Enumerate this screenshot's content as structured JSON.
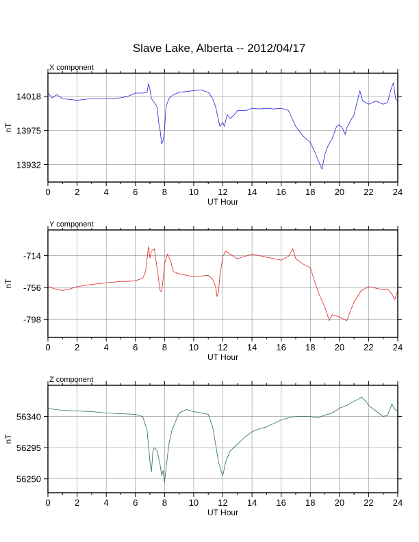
{
  "page": {
    "title": "Slave Lake, Alberta -- 2012/04/17"
  },
  "chart_data": [
    {
      "type": "line",
      "title": "X component",
      "xlabel": "UT Hour",
      "ylabel": "nT",
      "xlim": [
        0,
        24
      ],
      "ylim": [
        13910,
        14047
      ],
      "x_ticks": [
        0,
        2,
        4,
        6,
        8,
        10,
        12,
        14,
        16,
        18,
        20,
        22,
        24
      ],
      "y_ticks": [
        13932,
        13975,
        14018
      ],
      "grid": true,
      "series": [
        {
          "color": "#2020dd",
          "x": [
            0,
            0.3,
            0.6,
            1,
            1.5,
            2,
            3,
            4,
            5,
            5.5,
            6,
            6.5,
            6.8,
            6.9,
            7.0,
            7.1,
            7.3,
            7.5,
            7.6,
            7.7,
            7.8,
            7.9,
            8.0,
            8.1,
            8.3,
            8.6,
            9,
            9.5,
            10,
            10.5,
            11,
            11.3,
            11.5,
            11.7,
            11.8,
            12.0,
            12.1,
            12.3,
            12.5,
            12.8,
            13,
            13.3,
            13.6,
            14,
            14.5,
            15,
            15.5,
            16,
            16.5,
            17,
            17.5,
            18,
            18.3,
            18.6,
            18.8,
            19.0,
            19.2,
            19.5,
            19.8,
            20,
            20.2,
            20.4,
            20.5,
            20.7,
            21,
            21.2,
            21.4,
            21.6,
            21.8,
            22,
            22.5,
            23,
            23.3,
            23.5,
            23.7,
            23.85,
            24
          ],
          "y": [
            14022,
            14016,
            14020,
            14015,
            14014,
            14013,
            14015,
            14015,
            14016,
            14018,
            14022,
            14022,
            14023,
            14034,
            14027,
            14015,
            14010,
            14004,
            13985,
            13975,
            13958,
            13962,
            13975,
            14005,
            14015,
            14020,
            14023,
            14024,
            14025,
            14026,
            14023,
            14015,
            14005,
            13988,
            13980,
            13985,
            13980,
            13995,
            13990,
            13995,
            14000,
            14000,
            14000,
            14003,
            14002,
            14003,
            14002,
            14003,
            14000,
            13980,
            13968,
            13960,
            13948,
            13935,
            13926,
            13945,
            13955,
            13965,
            13980,
            13982,
            13978,
            13970,
            13978,
            13985,
            13995,
            14010,
            14025,
            14012,
            14010,
            14008,
            14012,
            14008,
            14010,
            14025,
            14035,
            14015,
            14012
          ]
        }
      ]
    },
    {
      "type": "line",
      "title": "Y component",
      "xlabel": "UT Hour",
      "ylabel": "nT",
      "xlim": [
        0,
        24
      ],
      "ylim": [
        -822,
        -680
      ],
      "x_ticks": [
        0,
        2,
        4,
        6,
        8,
        10,
        12,
        14,
        16,
        18,
        20,
        22,
        24
      ],
      "y_ticks": [
        -714,
        -756,
        -798
      ],
      "grid": true,
      "series": [
        {
          "color": "#e02020",
          "x": [
            0,
            0.5,
            1,
            1.5,
            2,
            3,
            4,
            5,
            5.5,
            6,
            6.5,
            6.7,
            6.9,
            7.0,
            7.1,
            7.3,
            7.5,
            7.7,
            7.8,
            7.9,
            8.0,
            8.2,
            8.4,
            8.6,
            9,
            9.5,
            10,
            10.5,
            11,
            11.3,
            11.5,
            11.6,
            11.7,
            11.8,
            12.0,
            12.2,
            12.5,
            13,
            13.5,
            14,
            14.5,
            15,
            15.5,
            16,
            16.5,
            16.8,
            17,
            17.5,
            18,
            18.3,
            18.6,
            19.0,
            19.3,
            19.5,
            20,
            20.5,
            20.7,
            21,
            21.5,
            22,
            22.5,
            23,
            23.3,
            23.6,
            23.8,
            24
          ],
          "y": [
            -755,
            -758,
            -760,
            -758,
            -755,
            -752,
            -750,
            -748,
            -748,
            -747,
            -744,
            -735,
            -702,
            -717,
            -708,
            -705,
            -732,
            -760,
            -762,
            -745,
            -725,
            -712,
            -720,
            -735,
            -738,
            -740,
            -742,
            -741,
            -740,
            -745,
            -755,
            -768,
            -762,
            -740,
            -715,
            -708,
            -712,
            -718,
            -715,
            -712,
            -714,
            -716,
            -718,
            -720,
            -715,
            -705,
            -718,
            -725,
            -730,
            -748,
            -765,
            -782,
            -800,
            -792,
            -795,
            -800,
            -790,
            -775,
            -760,
            -755,
            -757,
            -759,
            -758,
            -765,
            -772,
            -760
          ]
        }
      ]
    },
    {
      "type": "line",
      "title": "Z component",
      "xlabel": "UT Hour",
      "ylabel": "nT",
      "xlim": [
        0,
        24
      ],
      "ylim": [
        56230,
        56385
      ],
      "x_ticks": [
        0,
        2,
        4,
        6,
        8,
        10,
        12,
        14,
        16,
        18,
        20,
        22,
        24
      ],
      "y_ticks": [
        56250,
        56295,
        56340
      ],
      "grid": true,
      "series": [
        {
          "color": "#207040",
          "x": [
            0,
            0.5,
            1,
            2,
            3,
            4,
            5,
            6,
            6.5,
            6.8,
            7.0,
            7.1,
            7.2,
            7.3,
            7.5,
            7.7,
            7.8,
            7.9,
            8.0,
            8.1,
            8.3,
            8.5,
            8.8,
            9,
            9.5,
            10,
            10.5,
            11,
            11.3,
            11.5,
            11.7,
            11.9,
            12.0,
            12.2,
            12.5,
            13,
            13.5,
            14,
            14.5,
            15,
            15.5,
            16,
            16.5,
            17,
            17.5,
            18,
            18.5,
            19,
            19.5,
            20,
            20.5,
            21,
            21.3,
            21.5,
            21.8,
            22,
            22.5,
            23,
            23.3,
            23.6,
            23.8,
            24
          ],
          "y": [
            56352,
            56350,
            56349,
            56348,
            56347,
            56345,
            56344,
            56343,
            56340,
            56320,
            56275,
            56260,
            56290,
            56295,
            56290,
            56270,
            56255,
            56262,
            56245,
            56265,
            56300,
            56320,
            56335,
            56345,
            56350,
            56347,
            56345,
            56343,
            56325,
            56300,
            56275,
            56260,
            56255,
            56275,
            56290,
            56300,
            56310,
            56318,
            56322,
            56325,
            56330,
            56335,
            56338,
            56340,
            56340,
            56340,
            56338,
            56342,
            56345,
            56352,
            56356,
            56362,
            56365,
            56368,
            56362,
            56356,
            56348,
            56340,
            56342,
            56358,
            56350,
            56348
          ]
        }
      ]
    }
  ]
}
